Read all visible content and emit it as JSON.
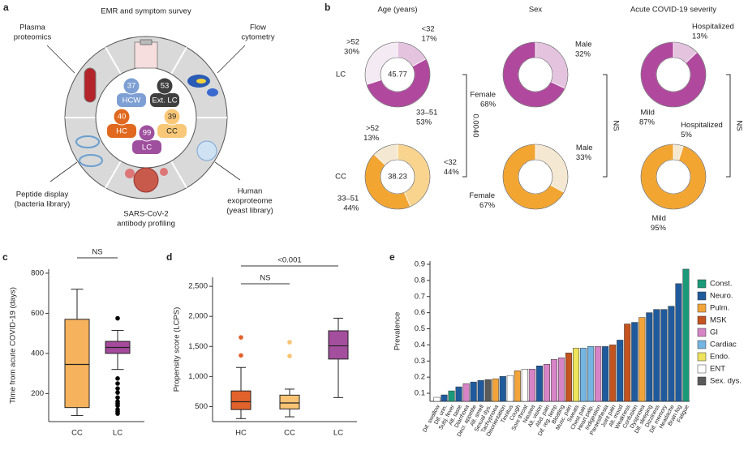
{
  "panel_a": {
    "label": "a",
    "sections": [
      {
        "lines": [
          "EMR and symptom survey"
        ]
      },
      {
        "lines": [
          "Plasma",
          "proteomics"
        ]
      },
      {
        "lines": [
          "Flow",
          "cytometry"
        ]
      },
      {
        "lines": [
          "Peptide display",
          "(bacteria library)"
        ]
      },
      {
        "lines": [
          "Human",
          "exoproteome",
          "(yeast library)"
        ]
      },
      {
        "lines": [
          "SARS-CoV-2",
          "antibody profiling"
        ]
      }
    ],
    "cohorts": [
      {
        "n": 37,
        "name": "HCW",
        "color": "#7d9fd3",
        "text_color": "#ffffff"
      },
      {
        "n": 53,
        "name": "Ext. LC",
        "color": "#3f3f3f",
        "text_color": "#ffffff"
      },
      {
        "n": 40,
        "name": "HC",
        "color": "#e0691f",
        "text_color": "#ffffff"
      },
      {
        "n": 39,
        "name": "CC",
        "color": "#f8c878",
        "text_color": "#222222"
      },
      {
        "n": 99,
        "name": "LC",
        "color": "#9e4f9e",
        "text_color": "#ffffff"
      }
    ]
  },
  "chart_data": [
    {
      "type": "pie",
      "label": "b",
      "columns": [
        "Age (years)",
        "Sex",
        "Acute COVID-19 severity"
      ],
      "rows": [
        {
          "name": "LC",
          "pies": [
            {
              "categories": [
                "<32",
                "33–51",
                ">52"
              ],
              "values": [
                17,
                53,
                30
              ],
              "value_labels": [
                "17%",
                "53%",
                "30%"
              ],
              "colors": [
                "#e4c3df",
                "#b0489e",
                "#f4eaf3"
              ],
              "center": 45.77
            },
            {
              "categories": [
                "Male",
                "Female"
              ],
              "values": [
                32,
                68
              ],
              "value_labels": [
                "32%",
                "68%"
              ],
              "colors": [
                "#e4c3df",
                "#b0489e"
              ]
            },
            {
              "categories": [
                "Hospitalized",
                "Mild"
              ],
              "values": [
                13,
                87
              ],
              "value_labels": [
                "13%",
                "87%"
              ],
              "colors": [
                "#e4c3df",
                "#b0489e"
              ]
            }
          ]
        },
        {
          "name": "CC",
          "pies": [
            {
              "categories": [
                "<32",
                "33–51",
                ">52"
              ],
              "values": [
                44,
                44,
                13
              ],
              "value_labels": [
                "44%",
                "44%",
                "13%"
              ],
              "colors": [
                "#f8d48f",
                "#f2a531",
                "#f5e8d2"
              ],
              "center": 38.23
            },
            {
              "categories": [
                "Male",
                "Female"
              ],
              "values": [
                33,
                67
              ],
              "value_labels": [
                "33%",
                "67%"
              ],
              "colors": [
                "#f5e8d2",
                "#f2a531"
              ]
            },
            {
              "categories": [
                "Hospitalized",
                "Mild"
              ],
              "values": [
                5,
                95
              ],
              "value_labels": [
                "5%",
                "95%"
              ],
              "colors": [
                "#f5e8d2",
                "#f2a531"
              ]
            }
          ]
        }
      ],
      "comparisons": [
        "0.0040",
        "NS",
        "NS"
      ]
    },
    {
      "type": "box",
      "label": "c",
      "ylabel": "Time from acute COVID-19 (days)",
      "categories": [
        "CC",
        "LC"
      ],
      "colors": [
        "#f6b25c",
        "#a54a9c"
      ],
      "outlier_colors": [
        "#000000",
        "#000000"
      ],
      "boxes": [
        {
          "min": 90,
          "q1": 130,
          "median": 345,
          "q3": 570,
          "max": 720,
          "outliers": []
        },
        {
          "min": 320,
          "q1": 400,
          "median": 430,
          "q3": 460,
          "max": 515,
          "outliers": [
            575,
            275,
            250,
            225,
            205,
            180,
            160,
            150,
            140,
            120,
            110,
            100
          ]
        }
      ],
      "ylim": [
        60,
        820
      ],
      "yticks": [
        200,
        400,
        600,
        800
      ],
      "annotations": [
        {
          "label": "NS",
          "between": [
            "CC",
            "LC"
          ]
        }
      ]
    },
    {
      "type": "box",
      "label": "d",
      "ylabel": "Propensity score (LCPS)",
      "categories": [
        "HC",
        "CC",
        "LC"
      ],
      "colors": [
        "#e2622b",
        "#f8c474",
        "#a44e9e"
      ],
      "outlier_colors": [
        "#e2622b",
        "#f8c474",
        "#a44e9e"
      ],
      "boxes": [
        {
          "min": 300,
          "q1": 450,
          "median": 580,
          "q3": 760,
          "max": 1150,
          "outliers": [
            1650,
            1350
          ]
        },
        {
          "min": 330,
          "q1": 460,
          "median": 560,
          "q3": 690,
          "max": 790,
          "outliers": [
            1570,
            1340
          ]
        },
        {
          "min": 650,
          "q1": 1290,
          "median": 1510,
          "q3": 1760,
          "max": 1970,
          "outliers": []
        }
      ],
      "ylim": [
        250,
        2650
      ],
      "yticks": [
        500,
        {
          "value": 1000,
          "label": "1,000"
        },
        {
          "value": 1500,
          "label": "1,500"
        },
        {
          "value": 2000,
          "label": "2,000"
        },
        {
          "value": 2500,
          "label": "2,500"
        }
      ],
      "annotations": [
        {
          "label": "<0.001",
          "between": [
            "HC",
            "LC"
          ]
        },
        {
          "label": "NS",
          "between": [
            "HC",
            "CC"
          ]
        }
      ]
    },
    {
      "type": "bar",
      "label": "e",
      "ylabel": "Prevalence",
      "categories": [
        "Dif. swallow",
        "Dif. urin.",
        "Subj. fever",
        "Alt. taste",
        "Diarrhoea",
        "Decr. appetite",
        "Alt. smell",
        "Sexual dys.",
        "Tachypnoea",
        "Disorientation",
        "Tinnitus",
        "Cough",
        "Sore throat",
        "Nausea",
        "Alt. vision",
        "Abd. pain",
        "Dif. reg. temp",
        "Bloating",
        "Musc. pain",
        "Sweats",
        "Chest pain",
        "Heart palp.",
        "Indigestion",
        "Paraesthesia",
        "Joint pain",
        "Alt. mood",
        "Weakness",
        "Confusion",
        "Dyspnoea",
        "Dif. sleeping",
        "Dizziness",
        "Dif. memory",
        "Headache",
        "Brain fog",
        "Fatigue"
      ],
      "values": [
        0.075,
        0.09,
        0.115,
        0.14,
        0.16,
        0.17,
        0.18,
        0.185,
        0.19,
        0.205,
        0.21,
        0.24,
        0.25,
        0.25,
        0.27,
        0.28,
        0.31,
        0.32,
        0.35,
        0.38,
        0.38,
        0.39,
        0.39,
        0.39,
        0.4,
        0.43,
        0.53,
        0.54,
        0.57,
        0.6,
        0.62,
        0.62,
        0.64,
        0.78,
        0.87
      ],
      "colors": [
        "#ffffff",
        "#1f5b9c",
        "#1a9a78",
        "#1f5b9c",
        "#d684c6",
        "#1f5b9c",
        "#1f5b9c",
        "#5a5a5a",
        "#f2a43a",
        "#1f5b9c",
        "#ffffff",
        "#f2a43a",
        "#ffffff",
        "#d684c6",
        "#1f5b9c",
        "#d684c6",
        "#d684c6",
        "#d684c6",
        "#c3531f",
        "#ede35c",
        "#74b5e2",
        "#74b5e2",
        "#d684c6",
        "#1f5b9c",
        "#c3531f",
        "#1f5b9c",
        "#c3531f",
        "#1f5b9c",
        "#f2a43a",
        "#1f5b9c",
        "#1f5b9c",
        "#1f5b9c",
        "#1f5b9c",
        "#1f5b9c",
        "#1a9a78"
      ],
      "legend": [
        {
          "name": "Const.",
          "color": "#1a9a78"
        },
        {
          "name": "Neuro.",
          "color": "#1f5b9c"
        },
        {
          "name": "Pulm.",
          "color": "#f2a43a"
        },
        {
          "name": "MSK",
          "color": "#c3531f"
        },
        {
          "name": "GI",
          "color": "#d684c6"
        },
        {
          "name": "Cardiac",
          "color": "#74b5e2"
        },
        {
          "name": "Endo.",
          "color": "#ede35c"
        },
        {
          "name": "ENT",
          "color": "#ffffff"
        },
        {
          "name": "Sex. dys.",
          "color": "#5a5a5a"
        }
      ],
      "ylim": [
        0.05,
        0.92
      ],
      "yticks": [
        0.1,
        0.2,
        0.3,
        0.4,
        0.5,
        0.6,
        0.7,
        0.8,
        0.9
      ]
    }
  ]
}
